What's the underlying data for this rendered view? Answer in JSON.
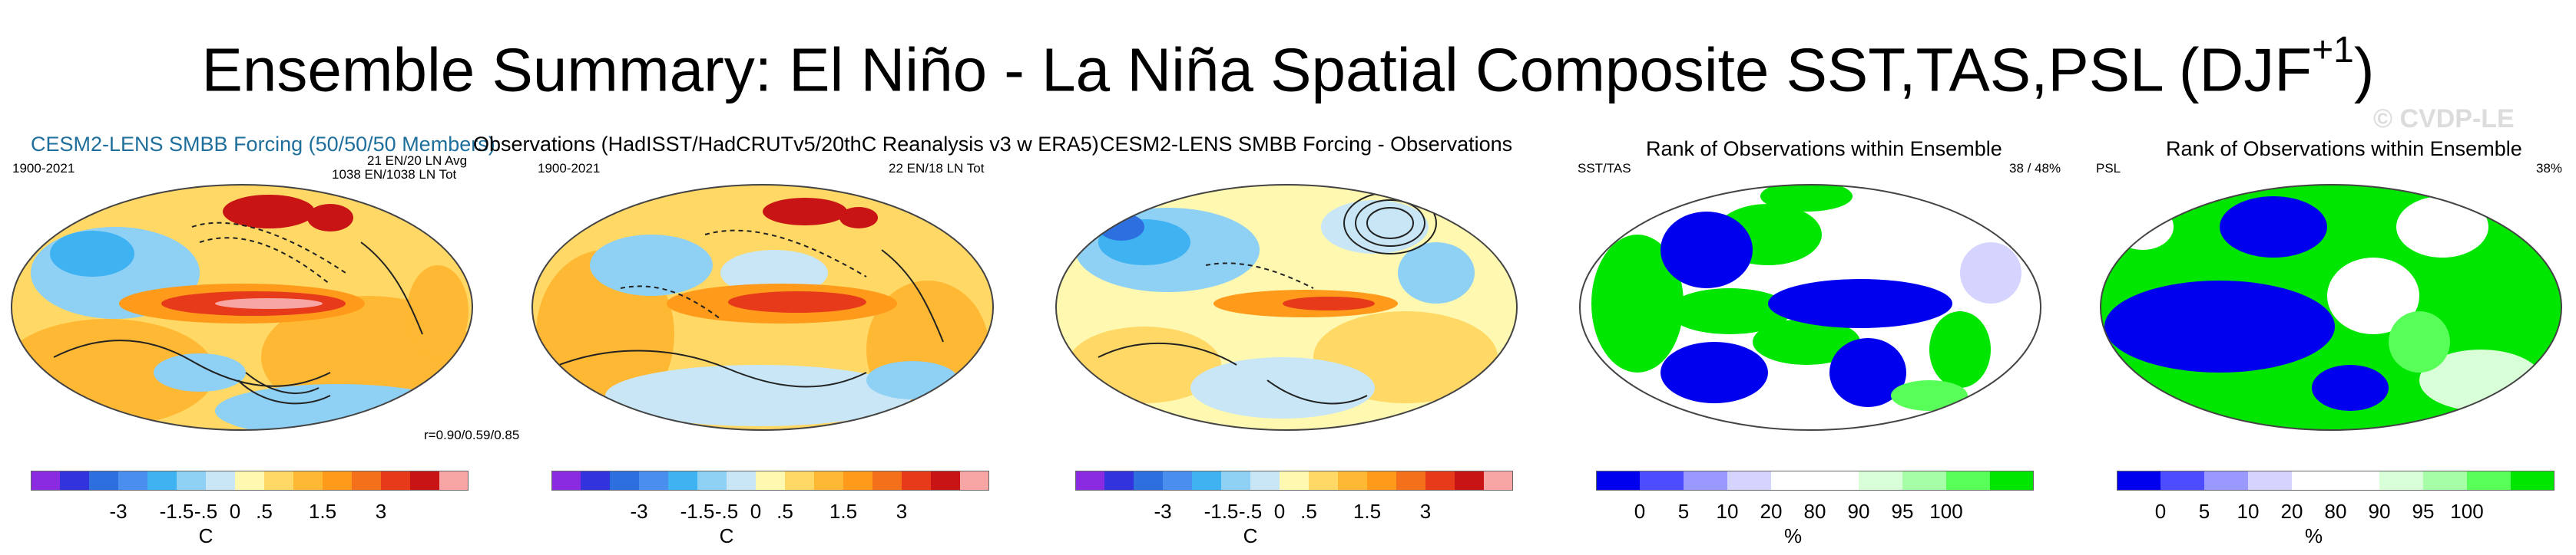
{
  "title": {
    "main": "Ensemble Summary: El Niño - La Niña Spatial Composite SST,TAS,PSL (DJF",
    "superscript": "+1",
    "close": ")"
  },
  "watermark": "© CVDP-LE",
  "panels": [
    {
      "header": "CESM2-LENS SMBB Forcing (50/50/50 Members)",
      "header_color": "#1f6f9c",
      "left_note": "1900-2021",
      "right_note_1": "21 EN/20 LN Avg",
      "right_note_2": "1038 EN/1038 LN Tot",
      "corr_note": "r=0.90/0.59/0.85"
    },
    {
      "header": "Observations (HadISST/HadCRUTv5/20thC Reanalysis v3 w ERA5)",
      "header_color": "#000000",
      "left_note": "1900-2021",
      "right_note_1": "22 EN/18 LN Tot"
    },
    {
      "header": "CESM2-LENS SMBB Forcing - Observations",
      "header_color": "#000000"
    },
    {
      "header": "Rank of Observations within Ensemble",
      "header_color": "#000000",
      "left_note": "SST/TAS",
      "right_note_1": "38 /  48%"
    },
    {
      "header": "Rank of Observations within Ensemble",
      "header_color": "#000000",
      "left_note": "PSL",
      "right_note_1": "38%"
    }
  ],
  "colorbars": {
    "temperature": {
      "colors": [
        "#8a2be2",
        "#3333dd",
        "#2e6fe0",
        "#4a8fef",
        "#3fb2f2",
        "#8fd0f5",
        "#c8e6f5",
        "#fff8b0",
        "#ffd866",
        "#ffb833",
        "#ff9a1a",
        "#f5701a",
        "#e63a1a",
        "#c81414",
        "#f7a5a5"
      ],
      "ticks": [
        "-3",
        "-1.5",
        "-.5",
        "0",
        ".5",
        "1.5",
        "3"
      ],
      "unit": "C"
    },
    "rank": {
      "colors": [
        "#0000ee",
        "#4d4dff",
        "#9999ff",
        "#d4d4ff",
        "#ffffff",
        "#ffffff",
        "#d8ffd8",
        "#a6ffa6",
        "#59ff59",
        "#00e600"
      ],
      "ticks": [
        "0",
        "5",
        "10",
        "20",
        "80",
        "90",
        "95",
        "100"
      ],
      "unit": "%"
    }
  },
  "chart_data": [
    {
      "type": "heatmap",
      "title": "CESM2-LENS SMBB Forcing (50/50/50 Members)",
      "variables": [
        "SST",
        "TAS",
        "PSL"
      ],
      "season": "DJF+1",
      "period": "1900-2021",
      "pattern_correlation": [
        0.9,
        0.59,
        0.85
      ],
      "colorbar_ticks": [
        -3,
        -1.5,
        -0.5,
        0,
        0.5,
        1.5,
        3
      ],
      "units": "C"
    },
    {
      "type": "heatmap",
      "title": "Observations (HadISST/HadCRUTv5/20thC Reanalysis v3 w ERA5)",
      "period": "1900-2021",
      "events": "22 EN/18 LN Tot",
      "colorbar_ticks": [
        -3,
        -1.5,
        -0.5,
        0,
        0.5,
        1.5,
        3
      ],
      "units": "C"
    },
    {
      "type": "heatmap",
      "title": "CESM2-LENS SMBB Forcing - Observations",
      "colorbar_ticks": [
        -3,
        -1.5,
        -0.5,
        0,
        0.5,
        1.5,
        3
      ],
      "units": "C"
    },
    {
      "type": "heatmap",
      "title": "Rank of Observations within Ensemble",
      "variable": "SST/TAS",
      "summary_percent": [
        38,
        48
      ],
      "colorbar_ticks": [
        0,
        5,
        10,
        20,
        80,
        90,
        95,
        100
      ],
      "units": "%"
    },
    {
      "type": "heatmap",
      "title": "Rank of Observations within Ensemble",
      "variable": "PSL",
      "summary_percent": [
        38
      ],
      "colorbar_ticks": [
        0,
        5,
        10,
        20,
        80,
        90,
        95,
        100
      ],
      "units": "%"
    }
  ]
}
